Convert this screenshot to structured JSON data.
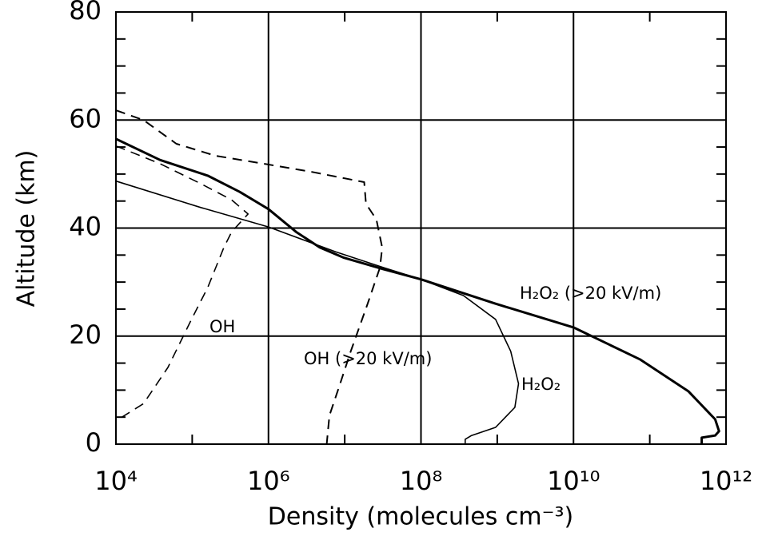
{
  "chart_data": {
    "type": "line",
    "xlabel": "Density (molecules cm⁻³)",
    "ylabel": "Altitude (km)",
    "xscale": "log",
    "xlim": [
      10000,
      1000000000000
    ],
    "ylim": [
      0,
      80
    ],
    "xticks": [
      {
        "value": 10000,
        "label": "10⁴"
      },
      {
        "value": 1000000,
        "label": "10⁶"
      },
      {
        "value": 100000000,
        "label": "10⁸"
      },
      {
        "value": 10000000000,
        "label": "10¹⁰"
      },
      {
        "value": 1000000000000,
        "label": "10¹²"
      }
    ],
    "xminorticks": [
      100000,
      10000000,
      1000000000,
      100000000000
    ],
    "yticks": [
      0,
      20,
      40,
      60,
      80
    ],
    "yminorticks": [
      5,
      10,
      15,
      25,
      30,
      35,
      45,
      50,
      55,
      65,
      70,
      75
    ],
    "grid": true,
    "series": [
      {
        "name": "OH",
        "color": "#000000",
        "dashed": true,
        "linewidth": 1.6,
        "x": [
          10000,
          38000,
          130000,
          330000,
          540000,
          330000,
          260000,
          160000,
          98000,
          48000,
          23000,
          10000
        ],
        "y": [
          55.2,
          51.9,
          48.2,
          45.2,
          42.6,
          39.3,
          36.4,
          29,
          23.1,
          14.2,
          7.5,
          4.3
        ]
      },
      {
        "name": "OH (>20 kV/m)",
        "color": "#000000",
        "dashed": true,
        "linewidth": 2,
        "x": [
          10000,
          23000,
          62000,
          200000,
          870000,
          3700000,
          18000000,
          19000000,
          26000000,
          31000000,
          29000000,
          20000000,
          12000000,
          8700000,
          6300000,
          5800000
        ],
        "y": [
          61.8,
          60,
          55.6,
          53.4,
          51.9,
          50.4,
          48.5,
          44.5,
          41.6,
          36.4,
          32.7,
          26,
          17.2,
          11.2,
          5.3,
          0
        ]
      },
      {
        "name": "H₂O₂",
        "color": "#000000",
        "dashed": false,
        "linewidth": 1.6,
        "x": [
          10000,
          130000,
          1000000,
          7600000,
          32000000,
          100000000,
          360000000,
          950000000,
          1500000000,
          1900000000,
          1700000000,
          950000000,
          460000000,
          380000000,
          380000000
        ],
        "y": [
          48.7,
          43.8,
          40.2,
          35.6,
          32.7,
          30.5,
          27.5,
          23.1,
          17.2,
          11.2,
          6.8,
          3.1,
          1.6,
          0.9,
          0
        ]
      },
      {
        "name": "H₂O₂ (>20 kV/m)",
        "color": "#000000",
        "dashed": false,
        "linewidth": 3,
        "x": [
          10000,
          38000,
          160000,
          420000,
          1000000,
          2300000,
          4700000,
          9800000,
          32000000,
          100000000,
          950000000,
          10000000000,
          74000000000,
          320000000000,
          720000000000,
          810000000000,
          720000000000,
          480000000000,
          480000000000
        ],
        "y": [
          56.5,
          52.6,
          49.7,
          46.7,
          43.5,
          39.3,
          36.4,
          34.5,
          32.4,
          30.5,
          26,
          21.6,
          15.7,
          9.8,
          4.6,
          2.4,
          1.6,
          1.2,
          0
        ]
      }
    ]
  }
}
